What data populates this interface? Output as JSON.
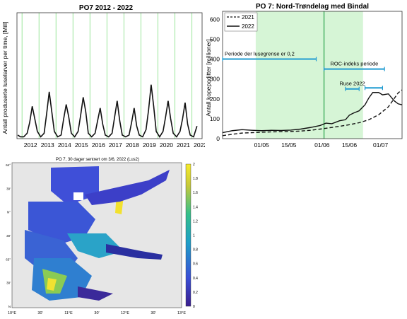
{
  "colors": {
    "green_line": "#9be59b",
    "green_band": "#d6f5d6",
    "cyan": "#1f9bd1",
    "line": "#111111",
    "land": "#e6e6e6"
  },
  "chart_data": [
    {
      "type": "line",
      "title": "PO7 2012 - 2022",
      "ylabel": "Antall produserte luselarver per time, [Mill]",
      "x_ticks": [
        "2012",
        "2013",
        "2014",
        "2015",
        "2016",
        "2017",
        "2018",
        "2019",
        "2020",
        "2021",
        "2022"
      ],
      "xlim": [
        2011.7,
        2022.6
      ],
      "ylim": [
        0,
        70
      ],
      "grid_years": [
        2012,
        2013,
        2014,
        2015,
        2016,
        2017,
        2018,
        2019,
        2020,
        2021,
        2022
      ],
      "series": [
        {
          "x": [
            2011.75,
            2011.9,
            2012.1,
            2012.3,
            2012.45,
            2012.6,
            2012.75,
            2012.9,
            2013.1,
            2013.3,
            2013.45,
            2013.6,
            2013.75,
            2013.9,
            2014.1,
            2014.3,
            2014.45,
            2014.6,
            2014.75,
            2014.9,
            2015.1,
            2015.3,
            2015.45,
            2015.6,
            2015.75,
            2015.9,
            2016.1,
            2016.3,
            2016.45,
            2016.6,
            2016.75,
            2016.9,
            2017.1,
            2017.3,
            2017.45,
            2017.6,
            2017.75,
            2017.9,
            2018.1,
            2018.3,
            2018.45,
            2018.6,
            2018.75,
            2018.9,
            2019.1,
            2019.3,
            2019.45,
            2019.6,
            2019.75,
            2019.9,
            2020.1,
            2020.3,
            2020.45,
            2020.6,
            2020.75,
            2020.9,
            2021.1,
            2021.3,
            2021.45,
            2021.6,
            2021.75,
            2021.9,
            2022.1,
            2022.3
          ],
          "values": [
            2,
            1,
            1,
            3,
            9,
            18,
            11,
            4,
            1,
            3,
            14,
            26,
            15,
            4,
            1,
            2,
            11,
            19,
            12,
            3,
            1,
            4,
            13,
            23,
            15,
            3,
            1,
            3,
            10,
            17,
            8,
            2,
            1,
            3,
            12,
            21,
            10,
            2,
            1,
            2,
            9,
            17,
            7,
            2,
            1,
            5,
            16,
            30,
            18,
            4,
            1,
            4,
            12,
            21,
            11,
            3,
            1,
            4,
            11,
            20,
            8,
            2,
            1,
            7
          ]
        }
      ]
    },
    {
      "type": "line",
      "title": "PO 7: Nord-Trøndelag med Bindal",
      "ylabel": "Antall kopepoditter [millioner]",
      "x_ticks": [
        "01/05",
        "15/05",
        "01/06",
        "15/06",
        "01/07"
      ],
      "y_ticks": [
        0,
        100,
        200,
        300,
        400,
        500,
        600
      ],
      "ylim": [
        0,
        640
      ],
      "x_days": [
        0,
        14,
        31,
        45,
        61
      ],
      "xlim": [
        -20,
        72
      ],
      "legend": "top-left",
      "legend_position": "top-left",
      "series": [
        {
          "name": "2021",
          "style": "dashed",
          "x": [
            -20,
            -15,
            -10,
            -5,
            0,
            5,
            10,
            15,
            20,
            25,
            30,
            35,
            40,
            45,
            50,
            55,
            60,
            65,
            70,
            72
          ],
          "values": [
            15,
            22,
            28,
            30,
            32,
            34,
            35,
            36,
            38,
            42,
            48,
            55,
            62,
            70,
            80,
            95,
            120,
            160,
            230,
            245
          ]
        },
        {
          "name": "2022",
          "style": "solid",
          "x": [
            -20,
            -15,
            -10,
            -5,
            0,
            5,
            10,
            15,
            20,
            25,
            30,
            33,
            36,
            40,
            43,
            45,
            47,
            50,
            53,
            55,
            57,
            60,
            62,
            65,
            68,
            70,
            72
          ],
          "values": [
            30,
            40,
            45,
            42,
            40,
            42,
            41,
            43,
            48,
            56,
            66,
            78,
            75,
            90,
            95,
            118,
            128,
            140,
            170,
            205,
            232,
            232,
            220,
            225,
            190,
            175,
            170
          ]
        }
      ],
      "shaded_period": {
        "start": -3,
        "end": 52
      },
      "vline_day": 32,
      "annotations": [
        {
          "label": "Periode der lusegrense er 0,2",
          "start": -20,
          "end": 28,
          "y": 400
        },
        {
          "label": "ROC-indeks periode",
          "start": 32,
          "end": 63,
          "y": 350
        },
        {
          "label": "Ruse 2022",
          "start": 43,
          "end": 50,
          "y": 250
        }
      ],
      "extra_bars": [
        {
          "start": 53,
          "end": 62,
          "y": 255
        }
      ]
    }
  ],
  "map": {
    "title": "PO 7, 30 dager sentrert om 3/6, 2022 (Lus2)",
    "x_ticks": [
      "10°E",
      "30'",
      "11°E",
      "30'",
      "12°E",
      "30'",
      "13°E"
    ],
    "y_ticks": [
      "64°",
      "30'",
      "N°",
      "30'",
      "63°",
      "30'",
      "N"
    ],
    "colorbar_ticks": [
      "2",
      "1.8",
      "1.6",
      "1.4",
      "1.2",
      "1",
      "0.8",
      "0.6",
      "0.4",
      "0.2",
      "0"
    ]
  }
}
